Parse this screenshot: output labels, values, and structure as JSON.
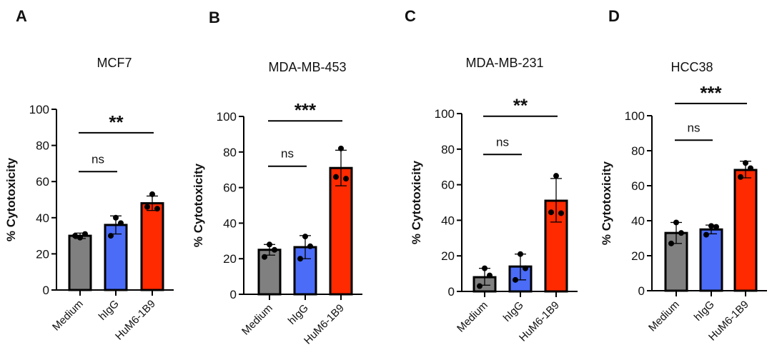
{
  "chart_data": [
    {
      "type": "bar",
      "panel_letter": "A",
      "title": "MCF7",
      "ylabel": "% Cytotoxicity",
      "ylim": [
        0,
        100
      ],
      "yticks": [
        0,
        20,
        40,
        60,
        80,
        100
      ],
      "categories": [
        "Medium",
        "hIgG",
        "HuM6-1B9"
      ],
      "colors": [
        "#808080",
        "#4a6cf7",
        "#ff2a00"
      ],
      "values": [
        30,
        36,
        48
      ],
      "error": [
        [
          28.5,
          31.5
        ],
        [
          31,
          41
        ],
        [
          44,
          52
        ]
      ],
      "points": [
        [
          29,
          31,
          30
        ],
        [
          40,
          37,
          30
        ],
        [
          53,
          45,
          46
        ]
      ],
      "significance": [
        {
          "from": 0,
          "to": 2,
          "label": "**",
          "y": 87
        },
        {
          "from": 0,
          "to": 1,
          "label": "ns",
          "y": 65.5
        }
      ]
    },
    {
      "type": "bar",
      "panel_letter": "B",
      "title": "MDA-MB-453",
      "ylabel": "% Cytotoxicity",
      "ylim": [
        0,
        100
      ],
      "yticks": [
        0,
        20,
        40,
        60,
        80,
        100
      ],
      "categories": [
        "Medium",
        "hIgG",
        "HuM6-1B9"
      ],
      "colors": [
        "#808080",
        "#4a6cf7",
        "#ff2a00"
      ],
      "values": [
        25,
        26.5,
        71
      ],
      "error": [
        [
          22,
          28
        ],
        [
          20,
          33
        ],
        [
          61,
          81
        ]
      ],
      "points": [
        [
          28,
          25,
          21
        ],
        [
          32.5,
          27,
          20
        ],
        [
          82,
          65,
          66
        ]
      ],
      "significance": [
        {
          "from": 0,
          "to": 2,
          "label": "***",
          "y": 97.5
        },
        {
          "from": 0,
          "to": 1,
          "label": "ns",
          "y": 72
        }
      ]
    },
    {
      "type": "bar",
      "panel_letter": "C",
      "title": "MDA-MB-231",
      "ylabel": "% Cytotoxicity",
      "ylim": [
        0,
        100
      ],
      "yticks": [
        0,
        20,
        40,
        60,
        80,
        100
      ],
      "categories": [
        "Medium",
        "hIgG",
        "HuM6-1B9"
      ],
      "colors": [
        "#808080",
        "#4a6cf7",
        "#ff2a00"
      ],
      "values": [
        8,
        14,
        51
      ],
      "error": [
        [
          3.5,
          13
        ],
        [
          6.5,
          21
        ],
        [
          39,
          63.5
        ]
      ],
      "points": [
        [
          13,
          9,
          3
        ],
        [
          21,
          13,
          6.5
        ],
        [
          65,
          44,
          44.5
        ]
      ],
      "significance": [
        {
          "from": 0,
          "to": 2,
          "label": "**",
          "y": 98.5
        },
        {
          "from": 0,
          "to": 1,
          "label": "ns",
          "y": 77
        }
      ]
    },
    {
      "type": "bar",
      "panel_letter": "D",
      "title": "HCC38",
      "ylabel": "% Cytotoxicity",
      "ylim": [
        0,
        100
      ],
      "yticks": [
        0,
        20,
        40,
        60,
        80,
        100
      ],
      "categories": [
        "Medium",
        "hIgG",
        "HuM6-1B9"
      ],
      "colors": [
        "#808080",
        "#4a6cf7",
        "#ff2a00"
      ],
      "values": [
        33,
        35,
        69
      ],
      "error": [
        [
          27,
          39
        ],
        [
          32.5,
          37.5
        ],
        [
          64.5,
          74
        ]
      ],
      "points": [
        [
          39,
          33,
          27
        ],
        [
          37,
          36.5,
          32
        ],
        [
          73,
          70,
          65
        ]
      ],
      "significance": [
        {
          "from": 0,
          "to": 2,
          "label": "***",
          "y": 107
        },
        {
          "from": 0,
          "to": 1,
          "label": "ns",
          "y": 86
        }
      ]
    }
  ]
}
